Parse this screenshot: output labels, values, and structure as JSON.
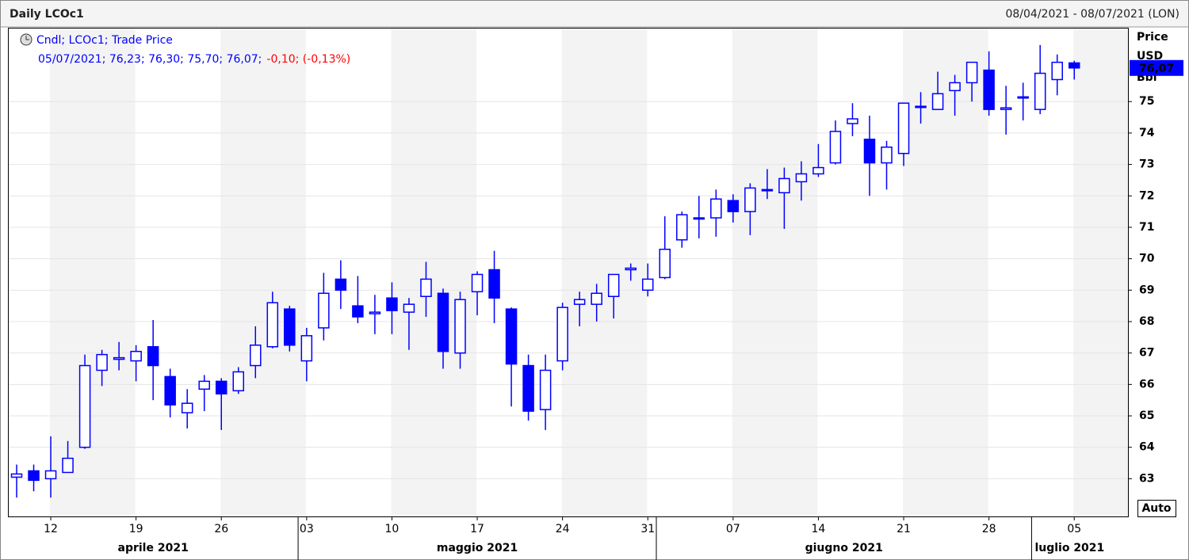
{
  "chart_data": {
    "type": "candlestick",
    "title": "Daily LCOc1",
    "subtitle": "08/04/2021 - 08/07/2021 (LON)",
    "legend": {
      "label": "Cndl; LCOc1; Trade Price",
      "values": "05/07/2021; 76,23; 76,30; 75,70; 76,07;",
      "change": "-0,10; (-0,13%)"
    },
    "y_label": "Price",
    "y_unit": "USD",
    "y_unit2": "Bbl",
    "auto_button": "Auto",
    "categories": [
      null,
      null,
      "12",
      null,
      null,
      null,
      null,
      "19",
      null,
      null,
      null,
      null,
      "26",
      null,
      null,
      null,
      null,
      "03",
      null,
      null,
      null,
      null,
      "10",
      null,
      null,
      null,
      null,
      "17",
      null,
      null,
      null,
      null,
      "24",
      null,
      null,
      null,
      null,
      "31",
      null,
      null,
      null,
      null,
      "07",
      null,
      null,
      null,
      null,
      "14",
      null,
      null,
      null,
      null,
      "21",
      null,
      null,
      null,
      null,
      "28",
      null,
      null,
      null,
      null,
      "05"
    ],
    "months": [
      {
        "label": "aprile 2021",
        "start": 0
      },
      {
        "label": "maggio 2021",
        "start": 17
      },
      {
        "label": "giugno 2021",
        "start": 38
      },
      {
        "label": "luglio 2021",
        "start": 60
      }
    ],
    "series": [
      {
        "color": "#0000ff",
        "open": [
          63.05,
          63.25,
          63.0,
          63.2,
          64.0,
          66.45,
          66.8,
          66.75,
          67.2,
          66.25,
          65.1,
          65.85,
          66.1,
          65.8,
          66.6,
          67.2,
          68.4,
          66.75,
          67.8,
          69.35,
          68.5,
          68.25,
          68.75,
          68.3,
          68.8,
          68.9,
          67.0,
          68.95,
          69.65,
          68.4,
          66.6,
          65.2,
          66.75,
          68.55,
          68.55,
          68.8,
          69.65,
          69.0,
          69.4,
          70.6,
          71.3,
          71.3,
          71.85,
          71.5,
          72.2,
          72.1,
          72.45,
          72.7,
          73.05,
          74.3,
          73.8,
          73.05,
          73.35,
          74.85,
          74.75,
          75.35,
          75.6,
          76.0,
          74.75,
          75.15,
          74.75,
          75.7,
          76.23
        ],
        "high": [
          63.45,
          63.45,
          64.35,
          64.2,
          66.95,
          67.1,
          67.35,
          67.25,
          68.05,
          66.5,
          65.85,
          66.3,
          66.2,
          66.55,
          67.85,
          68.95,
          68.5,
          67.8,
          69.55,
          69.95,
          69.45,
          68.85,
          69.25,
          68.75,
          69.9,
          69.05,
          68.95,
          69.6,
          70.25,
          68.45,
          66.95,
          66.95,
          68.6,
          68.95,
          69.2,
          69.5,
          69.85,
          69.85,
          71.35,
          71.5,
          72.0,
          72.2,
          72.05,
          72.4,
          72.85,
          72.9,
          73.1,
          73.65,
          74.4,
          74.95,
          74.55,
          73.75,
          74.95,
          75.3,
          75.95,
          75.85,
          76.25,
          76.6,
          75.5,
          75.6,
          76.8,
          76.5,
          76.3
        ],
        "low": [
          62.4,
          62.6,
          62.4,
          63.2,
          63.95,
          65.95,
          66.45,
          66.1,
          65.5,
          64.95,
          64.6,
          65.15,
          64.55,
          65.7,
          66.2,
          67.15,
          67.05,
          66.1,
          67.4,
          68.4,
          67.95,
          67.6,
          67.6,
          67.1,
          68.15,
          66.5,
          66.5,
          68.2,
          67.95,
          65.3,
          64.85,
          64.55,
          66.45,
          67.85,
          68.0,
          68.1,
          69.3,
          68.8,
          69.35,
          70.35,
          70.65,
          70.7,
          71.15,
          70.75,
          71.9,
          70.95,
          71.85,
          72.6,
          73.0,
          73.9,
          72.0,
          72.2,
          72.95,
          74.3,
          74.75,
          74.55,
          75.0,
          74.55,
          73.95,
          74.4,
          74.6,
          75.2,
          75.7
        ],
        "close": [
          63.15,
          62.95,
          63.25,
          63.65,
          66.6,
          66.95,
          66.85,
          67.05,
          66.6,
          65.35,
          65.4,
          66.1,
          65.7,
          66.4,
          67.25,
          68.6,
          67.25,
          67.55,
          68.9,
          69.0,
          68.15,
          68.3,
          68.35,
          68.55,
          69.35,
          67.05,
          68.7,
          69.5,
          68.75,
          66.65,
          65.15,
          66.45,
          68.45,
          68.7,
          68.9,
          69.5,
          69.7,
          69.35,
          70.3,
          71.4,
          71.3,
          71.9,
          71.5,
          72.25,
          72.2,
          72.55,
          72.7,
          72.9,
          74.05,
          74.45,
          73.05,
          73.55,
          74.95,
          74.85,
          75.25,
          75.6,
          76.25,
          74.75,
          74.8,
          75.15,
          75.9,
          76.25,
          76.07
        ]
      }
    ],
    "last_value": {
      "value": 76.07,
      "label": "76,07"
    },
    "ylim": [
      61.8,
      77.35
    ],
    "yticks": [
      63,
      64,
      65,
      66,
      67,
      68,
      69,
      70,
      71,
      72,
      73,
      74,
      75
    ],
    "grid": true
  }
}
